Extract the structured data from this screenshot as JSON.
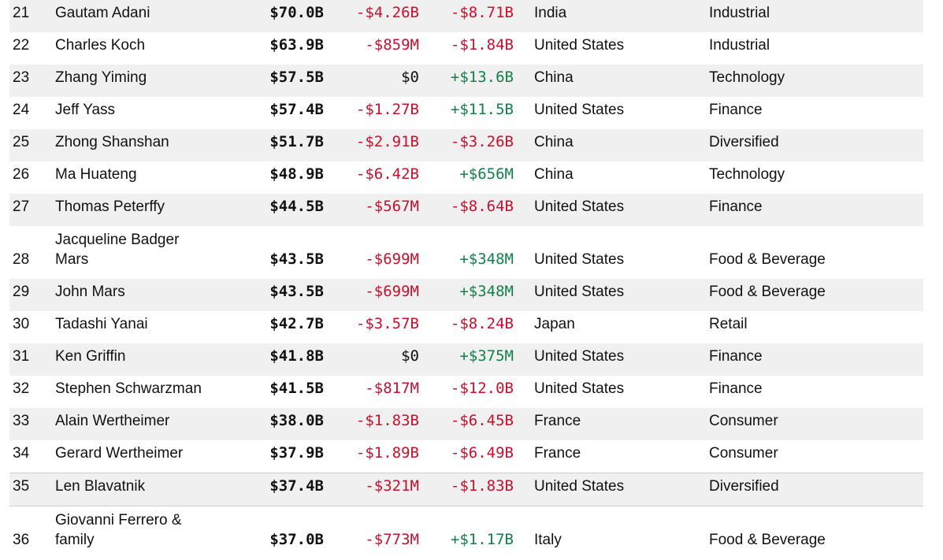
{
  "colors": {
    "negative": "#c8102e",
    "positive": "#13804a",
    "shade": "#f0f0f0"
  },
  "rows": [
    {
      "rank": "21",
      "name": "Gautam Adani",
      "net_worth": "$70.0B",
      "last_change": "-$4.26B",
      "ytd_change": "-$8.71B",
      "country": "India",
      "industry": "Industrial"
    },
    {
      "rank": "22",
      "name": "Charles Koch",
      "net_worth": "$63.9B",
      "last_change": "-$859M",
      "ytd_change": "-$1.84B",
      "country": "United States",
      "industry": "Industrial"
    },
    {
      "rank": "23",
      "name": "Zhang Yiming",
      "net_worth": "$57.5B",
      "last_change": "$0",
      "ytd_change": "+$13.6B",
      "country": "China",
      "industry": "Technology"
    },
    {
      "rank": "24",
      "name": "Jeff Yass",
      "net_worth": "$57.4B",
      "last_change": "-$1.27B",
      "ytd_change": "+$11.5B",
      "country": "United States",
      "industry": "Finance"
    },
    {
      "rank": "25",
      "name": "Zhong Shanshan",
      "net_worth": "$51.7B",
      "last_change": "-$2.91B",
      "ytd_change": "-$3.26B",
      "country": "China",
      "industry": "Diversified"
    },
    {
      "rank": "26",
      "name": "Ma Huateng",
      "net_worth": "$48.9B",
      "last_change": "-$6.42B",
      "ytd_change": "+$656M",
      "country": "China",
      "industry": "Technology"
    },
    {
      "rank": "27",
      "name": "Thomas Peterffy",
      "net_worth": "$44.5B",
      "last_change": "-$567M",
      "ytd_change": "-$8.64B",
      "country": "United States",
      "industry": "Finance"
    },
    {
      "rank": "28",
      "name": "Jacqueline Badger Mars",
      "net_worth": "$43.5B",
      "last_change": "-$699M",
      "ytd_change": "+$348M",
      "country": "United States",
      "industry": "Food & Beverage"
    },
    {
      "rank": "29",
      "name": "John Mars",
      "net_worth": "$43.5B",
      "last_change": "-$699M",
      "ytd_change": "+$348M",
      "country": "United States",
      "industry": "Food & Beverage"
    },
    {
      "rank": "30",
      "name": "Tadashi Yanai",
      "net_worth": "$42.7B",
      "last_change": "-$3.57B",
      "ytd_change": "-$8.24B",
      "country": "Japan",
      "industry": "Retail"
    },
    {
      "rank": "31",
      "name": "Ken Griffin",
      "net_worth": "$41.8B",
      "last_change": "$0",
      "ytd_change": "+$375M",
      "country": "United States",
      "industry": "Finance"
    },
    {
      "rank": "32",
      "name": "Stephen Schwarzman",
      "net_worth": "$41.5B",
      "last_change": "-$817M",
      "ytd_change": "-$12.0B",
      "country": "United States",
      "industry": "Finance"
    },
    {
      "rank": "33",
      "name": "Alain Wertheimer",
      "net_worth": "$38.0B",
      "last_change": "-$1.83B",
      "ytd_change": "-$6.45B",
      "country": "France",
      "industry": "Consumer"
    },
    {
      "rank": "34",
      "name": "Gerard Wertheimer",
      "net_worth": "$37.9B",
      "last_change": "-$1.89B",
      "ytd_change": "-$6.49B",
      "country": "France",
      "industry": "Consumer"
    },
    {
      "rank": "35",
      "name": "Len Blavatnik",
      "net_worth": "$37.4B",
      "last_change": "-$321M",
      "ytd_change": "-$1.83B",
      "country": "United States",
      "industry": "Diversified"
    },
    {
      "rank": "36",
      "name": "Giovanni Ferrero & family",
      "net_worth": "$37.0B",
      "last_change": "-$773M",
      "ytd_change": "+$1.17B",
      "country": "Italy",
      "industry": "Food & Beverage"
    }
  ]
}
